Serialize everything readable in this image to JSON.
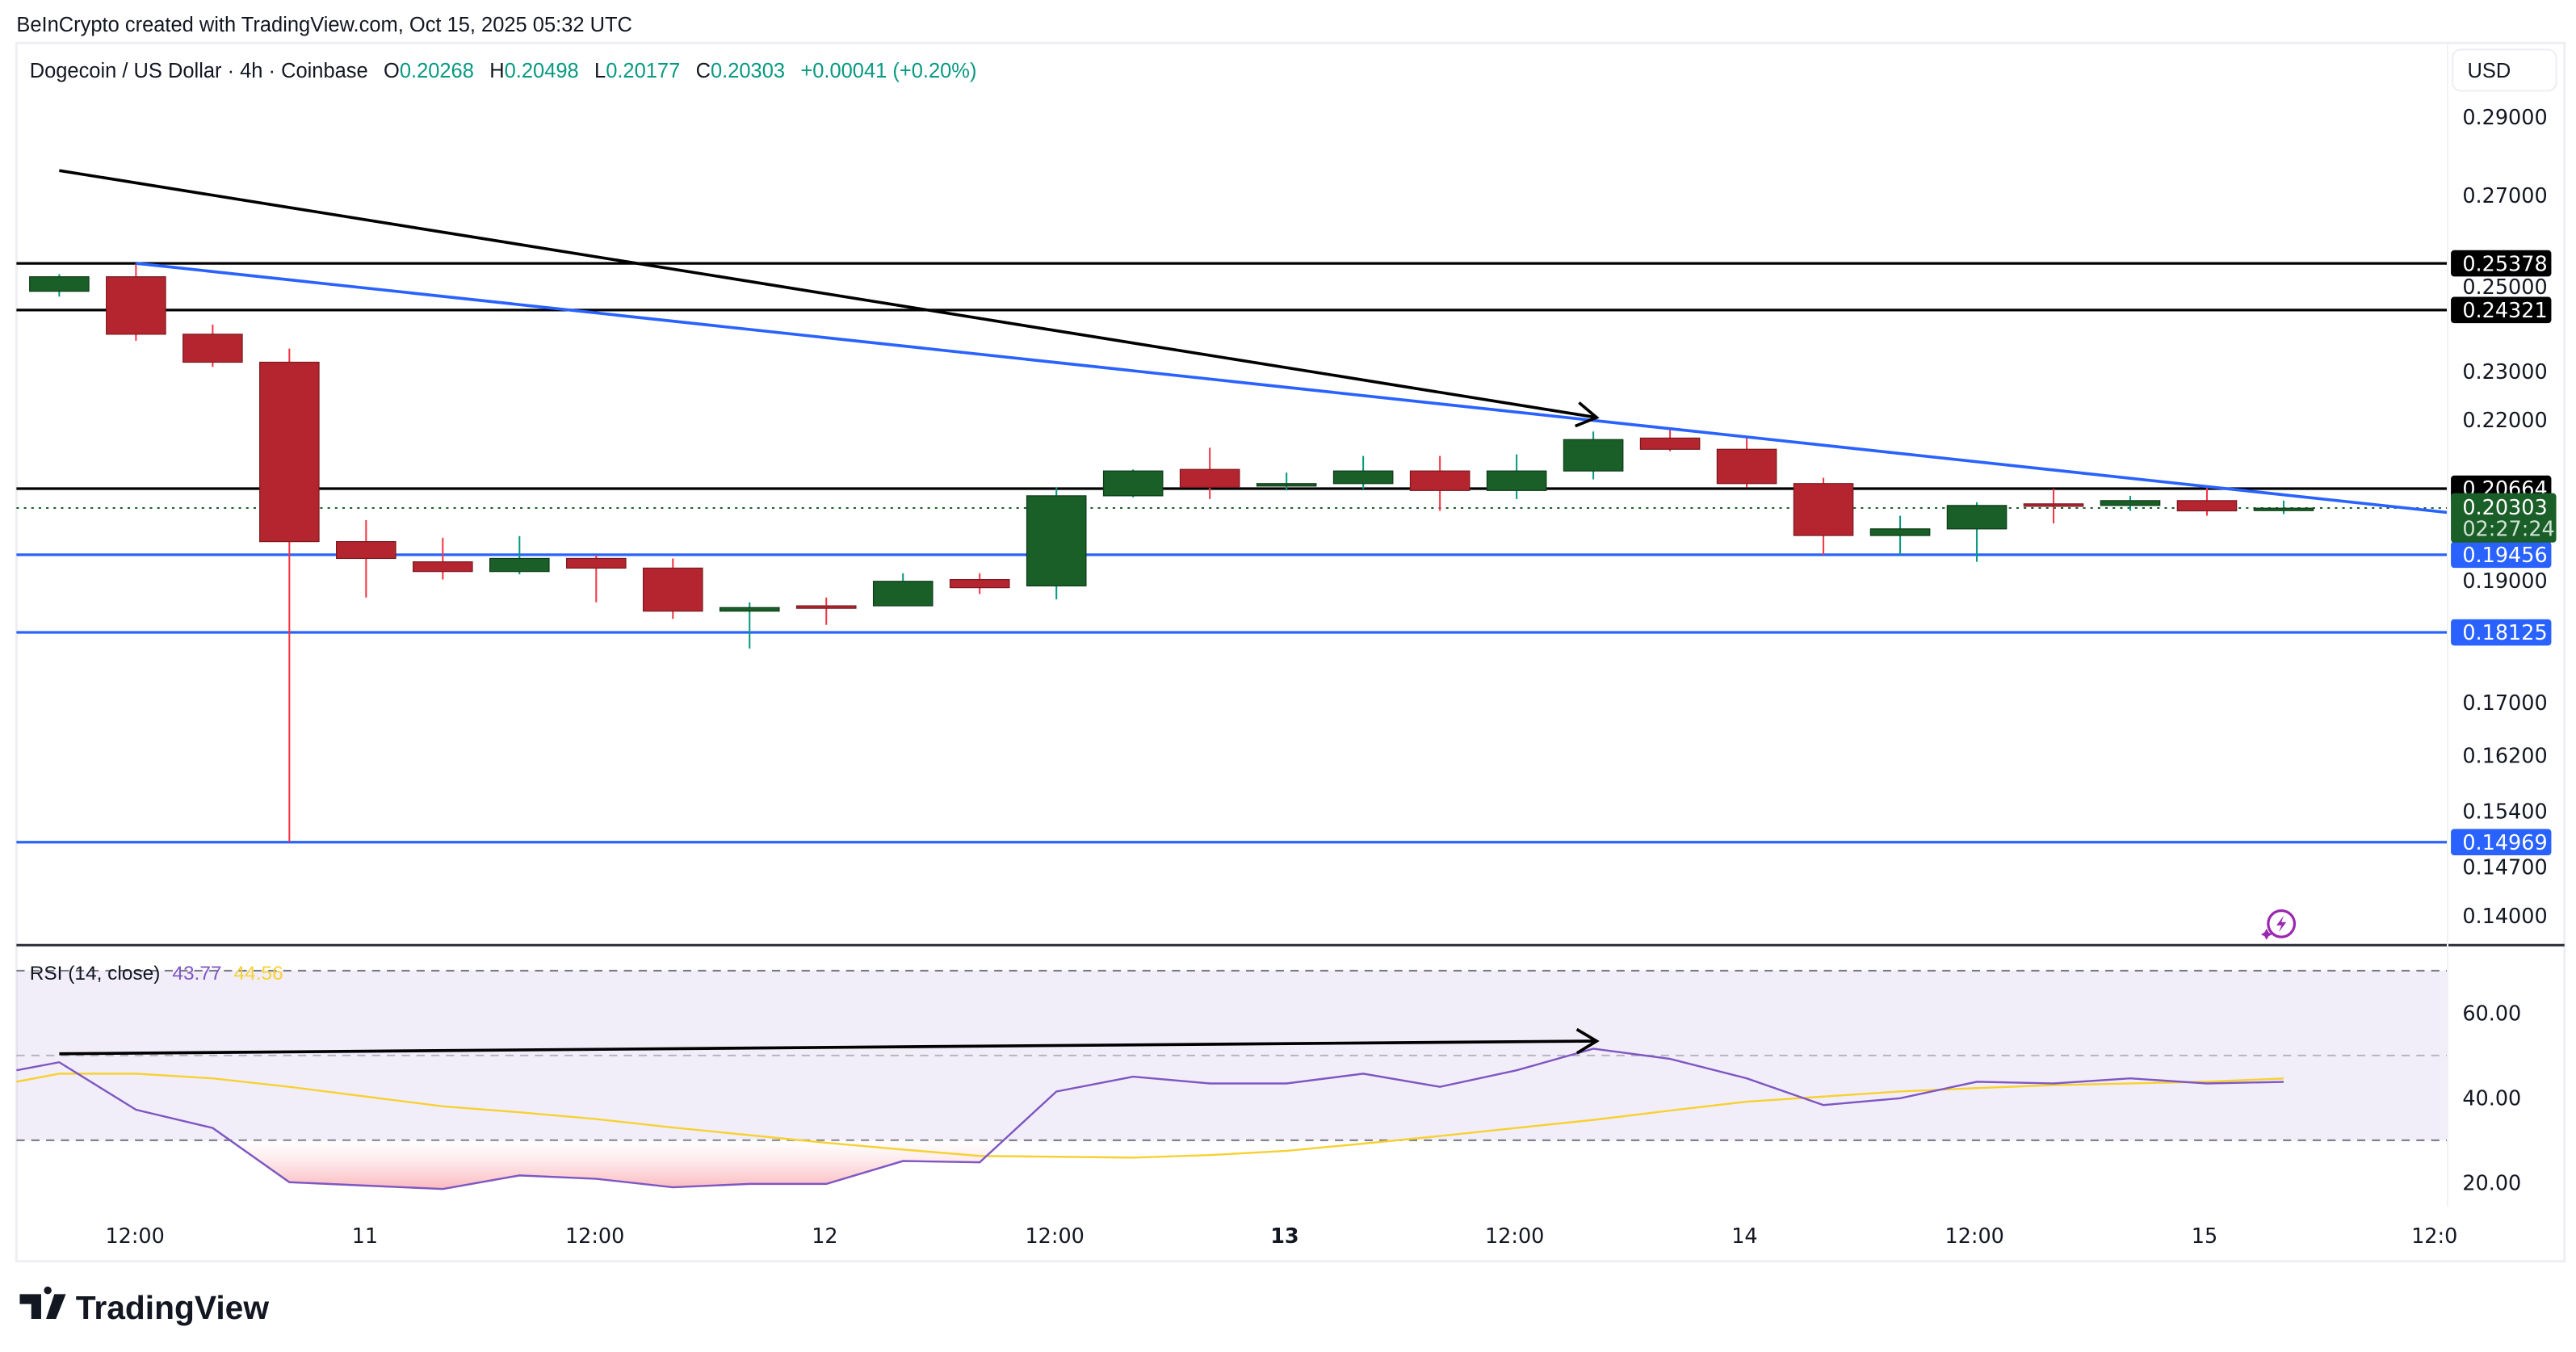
{
  "credit": "BeInCrypto created with TradingView.com, Oct 15, 2025 05:32 UTC",
  "legend": {
    "symbol": "Dogecoin / US Dollar · 4h · Coinbase",
    "o_label": "O",
    "o": "0.20268",
    "h_label": "H",
    "h": "0.20498",
    "l_label": "L",
    "l": "0.20177",
    "c_label": "C",
    "c": "0.20303",
    "change": "+0.00041 (+0.20%)"
  },
  "currency_button": "USD",
  "brand": "TradingView",
  "colors": {
    "up": "#1a5e28",
    "down": "#b5252f",
    "trend": "#2962ff",
    "rsi": "#7e57c2",
    "rsi_ma": "#f7d133",
    "support": "#2962ff",
    "resistance": "#000000"
  },
  "chart_data": {
    "type": "candlestick",
    "price_scale": "log",
    "price_ticks": [
      "0.29000",
      "0.27000",
      "0.25000",
      "0.23000",
      "0.22000",
      "0.19000",
      "0.17000",
      "0.16200",
      "0.15400",
      "0.14700",
      "0.14000"
    ],
    "time_ticks": [
      {
        "label": "12:00",
        "bold": false
      },
      {
        "label": "11",
        "bold": false
      },
      {
        "label": "12:00",
        "bold": false
      },
      {
        "label": "12",
        "bold": false
      },
      {
        "label": "12:00",
        "bold": false
      },
      {
        "label": "13",
        "bold": true
      },
      {
        "label": "12:00",
        "bold": false
      },
      {
        "label": "14",
        "bold": false
      },
      {
        "label": "12:00",
        "bold": false
      },
      {
        "label": "15",
        "bold": false
      },
      {
        "label": "12:0",
        "bold": false
      }
    ],
    "candles": [
      [
        0.2474,
        0.2513,
        0.2462,
        0.2507
      ],
      [
        0.2507,
        0.2538,
        0.2365,
        0.2379
      ],
      [
        0.2379,
        0.24,
        0.2309,
        0.2319
      ],
      [
        0.2319,
        0.2348,
        0.1497,
        0.1969
      ],
      [
        0.1969,
        0.2008,
        0.1871,
        0.1939
      ],
      [
        0.1933,
        0.1976,
        0.1902,
        0.1916
      ],
      [
        0.1916,
        0.1979,
        0.1911,
        0.1939
      ],
      [
        0.1939,
        0.1945,
        0.1863,
        0.1922
      ],
      [
        0.1922,
        0.1939,
        0.1835,
        0.1848
      ],
      [
        0.1848,
        0.1863,
        0.1786,
        0.1854
      ],
      [
        0.1857,
        0.1871,
        0.1825,
        0.1854
      ],
      [
        0.1857,
        0.1913,
        0.1857,
        0.1899
      ],
      [
        0.1902,
        0.1913,
        0.1877,
        0.1888
      ],
      [
        0.1891,
        0.2069,
        0.1868,
        0.2053
      ],
      [
        0.2053,
        0.2103,
        0.205,
        0.21
      ],
      [
        0.2103,
        0.2145,
        0.2047,
        0.2069
      ],
      [
        0.2073,
        0.2097,
        0.2063,
        0.2076
      ],
      [
        0.2076,
        0.2129,
        0.2066,
        0.21
      ],
      [
        0.21,
        0.2129,
        0.2025,
        0.2063
      ],
      [
        0.2063,
        0.2132,
        0.2047,
        0.21
      ],
      [
        0.21,
        0.2177,
        0.2084,
        0.2161
      ],
      [
        0.2164,
        0.2181,
        0.2138,
        0.2142
      ],
      [
        0.2142,
        0.2164,
        0.2069,
        0.2076
      ],
      [
        0.2076,
        0.2087,
        0.1945,
        0.198
      ],
      [
        0.198,
        0.2016,
        0.1945,
        0.1992
      ],
      [
        0.1992,
        0.2041,
        0.1933,
        0.2035
      ],
      [
        0.2038,
        0.2066,
        0.2002,
        0.2035
      ],
      [
        0.2035,
        0.2053,
        0.2025,
        0.2044
      ],
      [
        0.2044,
        0.2069,
        0.2016,
        0.2025
      ],
      [
        0.2027,
        0.2044,
        0.2019,
        0.203
      ]
    ],
    "candle_fields": [
      "open",
      "high",
      "low",
      "close"
    ],
    "levels": [
      {
        "value": 0.25378,
        "label": "0.25378",
        "kind": "resistance"
      },
      {
        "value": 0.24321,
        "label": "0.24321",
        "kind": "resistance"
      },
      {
        "value": 0.20664,
        "label": "0.20664",
        "kind": "resistance"
      },
      {
        "value": 0.19456,
        "label": "0.19456",
        "kind": "support"
      },
      {
        "value": 0.18125,
        "label": "0.18125",
        "kind": "support"
      },
      {
        "value": 0.14969,
        "label": "0.14969",
        "kind": "support"
      }
    ],
    "last_price": {
      "value": 0.20303,
      "label": "0.20303",
      "countdown": "02:27:24"
    },
    "trendline": {
      "from": {
        "candle": 1,
        "price": 0.2538
      },
      "to": {
        "candle": 31.9,
        "price": 0.2022
      }
    },
    "price_arrow": {
      "from": {
        "candle": 0,
        "price": 0.2762
      },
      "to": {
        "candle": 20,
        "price": 0.2205
      }
    },
    "rsi": {
      "title": "RSI (14, close)",
      "value": "43.77",
      "ma_value": "44.56",
      "ticks": [
        "60.00",
        "40.00",
        "20.00"
      ],
      "band": [
        30,
        70
      ],
      "mid": 50,
      "values": [
        48.4,
        37.2,
        32.9,
        20.1,
        19.3,
        18.5,
        21.7,
        20.9,
        18.9,
        19.7,
        19.7,
        25.1,
        24.8,
        41.5,
        45.0,
        43.4,
        43.4,
        45.7,
        42.6,
        46.5,
        51.6,
        49.2,
        44.6,
        38.3,
        39.9,
        43.8,
        43.4,
        44.6,
        43.4,
        43.77
      ],
      "ma": [
        45.7,
        45.7,
        44.6,
        42.6,
        40.3,
        38,
        36.6,
        35,
        33,
        31.2,
        29.4,
        27.8,
        26.3,
        26.1,
        25.9,
        26.5,
        27.5,
        29.2,
        31,
        32.9,
        34.8,
        37,
        39.1,
        40.3,
        41.5,
        42.3,
        43,
        43.4,
        43.8,
        44.56
      ],
      "arrow": {
        "from": {
          "candle": 0,
          "value": 50.4
        },
        "to": {
          "candle": 20,
          "value": 53.4
        }
      }
    }
  }
}
